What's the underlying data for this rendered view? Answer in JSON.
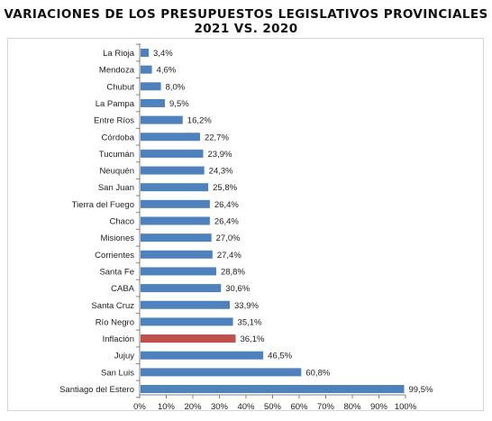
{
  "header": {
    "title_line1": "VARIACIONES DE LOS PRESUPUESTOS LEGISLATIVOS PROVINCIALES",
    "title_line2": "2021 VS. 2020"
  },
  "colors": {
    "bar": "#4f81bd",
    "highlight": "#c0504d",
    "axis": "#808080"
  },
  "chart_data": {
    "type": "bar",
    "orientation": "horizontal",
    "title": "VARIACIONES DE LOS PRESUPUESTOS LEGISLATIVOS PROVINCIALES 2021 VS. 2020",
    "categories": [
      "La Rioja",
      "Mendoza",
      "Chubut",
      "La Pampa",
      "Entre Ríos",
      "Córdoba",
      "Tucumán",
      "Neuquén",
      "San Juan",
      "Tierra del Fuego",
      "Chaco",
      "Misiones",
      "Corrientes",
      "Santa Fe",
      "CABA",
      "Santa Cruz",
      "Río Negro",
      "Inflación",
      "Jujuy",
      "San Luis",
      "Santiago del Estero"
    ],
    "values": [
      3.4,
      4.6,
      8.0,
      9.5,
      16.2,
      22.7,
      23.9,
      24.3,
      25.8,
      26.4,
      26.4,
      27.0,
      27.4,
      28.8,
      30.6,
      33.9,
      35.1,
      36.1,
      46.5,
      60.8,
      99.5
    ],
    "value_labels": [
      "3,4%",
      "4,6%",
      "8,0%",
      "9,5%",
      "16,2%",
      "22,7%",
      "23,9%",
      "24,3%",
      "25,8%",
      "26,4%",
      "26,4%",
      "27,0%",
      "27,4%",
      "28,8%",
      "30,6%",
      "33,9%",
      "35,1%",
      "36,1%",
      "46,5%",
      "60,8%",
      "99,5%"
    ],
    "highlight_category": "Inflación",
    "xlim": [
      0,
      100
    ],
    "xticks": [
      0,
      10,
      20,
      30,
      40,
      50,
      60,
      70,
      80,
      90,
      100
    ],
    "xtick_labels": [
      "0%",
      "10%",
      "20%",
      "30%",
      "40%",
      "50%",
      "60%",
      "70%",
      "80%",
      "90%",
      "100%"
    ],
    "xlabel": "",
    "ylabel": "",
    "grid": false,
    "legend": "none"
  }
}
